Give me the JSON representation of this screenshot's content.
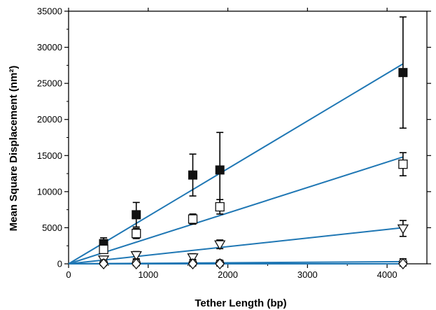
{
  "chart_data": {
    "type": "scatter",
    "title": "",
    "xlabel": "Tether Length (bp)",
    "ylabel": "Mean Square Displacement (nm²)",
    "xlim": [
      0,
      4500
    ],
    "ylim": [
      0,
      35000
    ],
    "x_ticks": [
      0,
      1000,
      2000,
      3000,
      4000
    ],
    "y_ticks": [
      0,
      5000,
      10000,
      15000,
      20000,
      25000,
      30000,
      35000
    ],
    "grid": false,
    "legend": "none",
    "fit_color": "#1f77b4",
    "series": [
      {
        "marker": "filled-square",
        "x": [
          440,
          850,
          1560,
          1900,
          4200
        ],
        "y": [
          2800,
          6800,
          12300,
          13000,
          26500
        ],
        "err": [
          800,
          1700,
          2900,
          5200,
          7700
        ],
        "fit": [
          [
            0,
            0
          ],
          [
            4200,
            27700
          ]
        ]
      },
      {
        "marker": "open-square",
        "x": [
          440,
          850,
          1560,
          1900,
          4200
        ],
        "y": [
          2000,
          4200,
          6200,
          7900,
          13800
        ],
        "err": [
          500,
          700,
          700,
          1000,
          1600
        ],
        "fit": [
          [
            0,
            0
          ],
          [
            4200,
            14800
          ]
        ]
      },
      {
        "marker": "open-triangle-down",
        "x": [
          440,
          850,
          1560,
          1900,
          4200
        ],
        "y": [
          600,
          1200,
          900,
          2700,
          4900
        ],
        "err": [
          400,
          500,
          500,
          600,
          1100
        ],
        "fit": [
          [
            0,
            0
          ],
          [
            4200,
            5000
          ]
        ]
      },
      {
        "marker": "open-circle",
        "x": [
          440,
          850,
          1560,
          1900,
          4200
        ],
        "y": [
          100,
          150,
          100,
          100,
          200
        ],
        "err": [
          300,
          400,
          500,
          400,
          500
        ],
        "fit": [
          [
            0,
            0
          ],
          [
            4200,
            300
          ]
        ]
      },
      {
        "marker": "open-diamond",
        "x": [
          440,
          850,
          1560,
          1900,
          4200
        ],
        "y": [
          0,
          0,
          0,
          0,
          0
        ],
        "err": [
          200,
          250,
          300,
          300,
          400
        ],
        "fit": [
          [
            0,
            0
          ],
          [
            4200,
            0
          ]
        ]
      }
    ]
  }
}
